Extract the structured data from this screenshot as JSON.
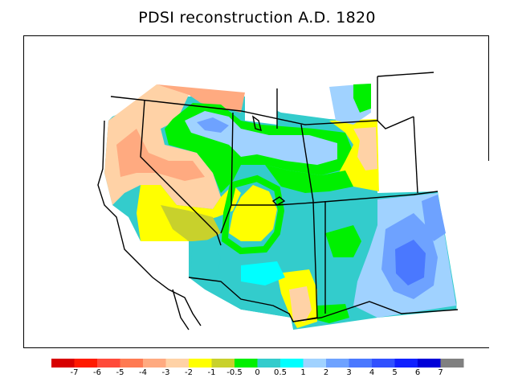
{
  "title": "PDSI reconstruction A.D. 1820",
  "legend": {
    "colors": [
      "#d70000",
      "#ff1a00",
      "#ff4a3a",
      "#ff7a52",
      "#ffaa80",
      "#ffd2a6",
      "#ffff00",
      "#c8d12c",
      "#00f000",
      "#33cccc",
      "#00ffff",
      "#a0d2ff",
      "#6ea2ff",
      "#4a78ff",
      "#3050ff",
      "#1020ff",
      "#0000d8",
      "#808080"
    ],
    "tick_labels": [
      "-7",
      "-6",
      "-5",
      "-4",
      "-3",
      "-2",
      "-1",
      "-0.5",
      "0",
      "0.5",
      "1",
      "2",
      "3",
      "4",
      "5",
      "6",
      "7"
    ]
  }
}
